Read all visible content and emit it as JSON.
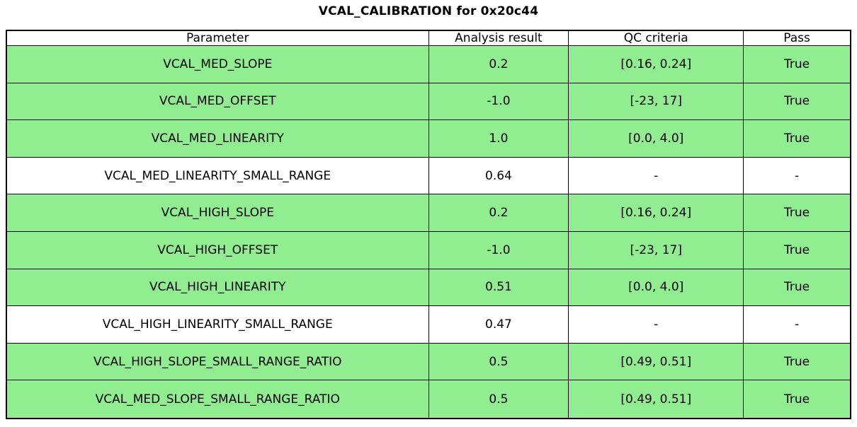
{
  "title": "VCAL_CALIBRATION for 0x20c44",
  "colors": {
    "pass_row_green": "#90EE90",
    "neutral_row_white": "#FFFFFF",
    "border": "#000000"
  },
  "table": {
    "columns": [
      "Parameter",
      "Analysis result",
      "QC criteria",
      "Pass"
    ],
    "rows": [
      {
        "parameter": "VCAL_MED_SLOPE",
        "analysis_result": "0.2",
        "qc_criteria": "[0.16, 0.24]",
        "pass": "True",
        "highlight": true
      },
      {
        "parameter": "VCAL_MED_OFFSET",
        "analysis_result": "-1.0",
        "qc_criteria": "[-23, 17]",
        "pass": "True",
        "highlight": true
      },
      {
        "parameter": "VCAL_MED_LINEARITY",
        "analysis_result": "1.0",
        "qc_criteria": "[0.0, 4.0]",
        "pass": "True",
        "highlight": true
      },
      {
        "parameter": "VCAL_MED_LINEARITY_SMALL_RANGE",
        "analysis_result": "0.64",
        "qc_criteria": "-",
        "pass": "-",
        "highlight": false
      },
      {
        "parameter": "VCAL_HIGH_SLOPE",
        "analysis_result": "0.2",
        "qc_criteria": "[0.16, 0.24]",
        "pass": "True",
        "highlight": true
      },
      {
        "parameter": "VCAL_HIGH_OFFSET",
        "analysis_result": "-1.0",
        "qc_criteria": "[-23, 17]",
        "pass": "True",
        "highlight": true
      },
      {
        "parameter": "VCAL_HIGH_LINEARITY",
        "analysis_result": "0.51",
        "qc_criteria": "[0.0, 4.0]",
        "pass": "True",
        "highlight": true
      },
      {
        "parameter": "VCAL_HIGH_LINEARITY_SMALL_RANGE",
        "analysis_result": "0.47",
        "qc_criteria": "-",
        "pass": "-",
        "highlight": false
      },
      {
        "parameter": "VCAL_HIGH_SLOPE_SMALL_RANGE_RATIO",
        "analysis_result": "0.5",
        "qc_criteria": "[0.49, 0.51]",
        "pass": "True",
        "highlight": true
      },
      {
        "parameter": "VCAL_MED_SLOPE_SMALL_RANGE_RATIO",
        "analysis_result": "0.5",
        "qc_criteria": "[0.49, 0.51]",
        "pass": "True",
        "highlight": true
      }
    ]
  },
  "chart_data": {
    "type": "table",
    "title": "VCAL_CALIBRATION for 0x20c44",
    "columns": [
      "Parameter",
      "Analysis result",
      "QC criteria",
      "Pass"
    ],
    "rows": [
      [
        "VCAL_MED_SLOPE",
        "0.2",
        "[0.16, 0.24]",
        "True"
      ],
      [
        "VCAL_MED_OFFSET",
        "-1.0",
        "[-23, 17]",
        "True"
      ],
      [
        "VCAL_MED_LINEARITY",
        "1.0",
        "[0.0, 4.0]",
        "True"
      ],
      [
        "VCAL_MED_LINEARITY_SMALL_RANGE",
        "0.64",
        "-",
        "-"
      ],
      [
        "VCAL_HIGH_SLOPE",
        "0.2",
        "[0.16, 0.24]",
        "True"
      ],
      [
        "VCAL_HIGH_OFFSET",
        "-1.0",
        "[-23, 17]",
        "True"
      ],
      [
        "VCAL_HIGH_LINEARITY",
        "0.51",
        "[0.0, 4.0]",
        "True"
      ],
      [
        "VCAL_HIGH_LINEARITY_SMALL_RANGE",
        "0.47",
        "-",
        "-"
      ],
      [
        "VCAL_HIGH_SLOPE_SMALL_RANGE_RATIO",
        "0.5",
        "[0.49, 0.51]",
        "True"
      ],
      [
        "VCAL_MED_SLOPE_SMALL_RANGE_RATIO",
        "0.5",
        "[0.49, 0.51]",
        "True"
      ]
    ],
    "row_highlighted_green": [
      true,
      true,
      true,
      false,
      true,
      true,
      true,
      false,
      true,
      true
    ],
    "layout": {
      "title_position": "top-center",
      "grid": true
    }
  }
}
